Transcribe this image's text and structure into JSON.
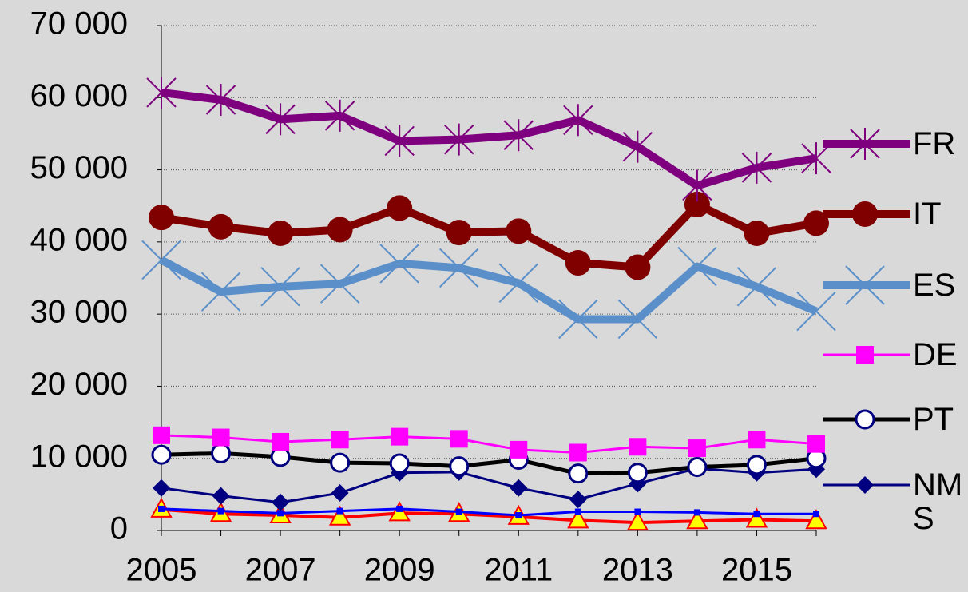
{
  "chart_data": {
    "type": "line",
    "x": [
      2005,
      2006,
      2007,
      2008,
      2009,
      2010,
      2011,
      2012,
      2013,
      2014,
      2015,
      2016
    ],
    "xlim": [
      2005,
      2016
    ],
    "xticks": [
      2005,
      2007,
      2009,
      2011,
      2013,
      2015
    ],
    "ylim": [
      0,
      70000
    ],
    "yticks": [
      {
        "value": 0,
        "label": "0"
      },
      {
        "value": 10000,
        "label": "10 000"
      },
      {
        "value": 20000,
        "label": "20 000"
      },
      {
        "value": 30000,
        "label": "30 000"
      },
      {
        "value": 40000,
        "label": "40 000"
      },
      {
        "value": 50000,
        "label": "50 000"
      },
      {
        "value": 60000,
        "label": "60 000"
      },
      {
        "value": 70000,
        "label": "70 000"
      }
    ],
    "grid": true,
    "legend": "right",
    "series": [
      {
        "name": "FR",
        "color": "#7f007f",
        "marker": "asterisk",
        "values": [
          60700,
          59700,
          57000,
          57500,
          54000,
          54200,
          54800,
          56900,
          53200,
          47800,
          50300,
          51600
        ]
      },
      {
        "name": "IT",
        "color": "#800000",
        "marker": "circle",
        "values": [
          43400,
          42100,
          41200,
          41700,
          44700,
          41300,
          41500,
          37100,
          36500,
          45200,
          41200,
          42600
        ]
      },
      {
        "name": "ES",
        "color": "#5b8fc9",
        "marker": "x",
        "values": [
          37500,
          33100,
          33800,
          34200,
          37000,
          36400,
          34300,
          29300,
          29300,
          36600,
          33800,
          30400
        ]
      },
      {
        "name": "DE",
        "color": "#ff00ff",
        "marker": "square",
        "values": [
          13200,
          12900,
          12300,
          12600,
          13000,
          12700,
          11200,
          10800,
          11600,
          11400,
          12600,
          12000
        ]
      },
      {
        "name": "PT",
        "color": "#000000",
        "marker": "ring",
        "values": [
          10500,
          10700,
          10200,
          9400,
          9300,
          8900,
          9800,
          7900,
          8000,
          8800,
          9100,
          10000
        ]
      },
      {
        "name": "NMS",
        "color": "#000080",
        "marker": "diamond",
        "values": [
          5900,
          4800,
          3900,
          5200,
          8000,
          8100,
          5900,
          4300,
          6500,
          8600,
          8000,
          8500
        ]
      },
      {
        "color": "#0000ff",
        "marker": "small-square",
        "values": [
          3000,
          2700,
          2400,
          2700,
          3000,
          2600,
          2100,
          2600,
          2600,
          2500,
          2300,
          2300
        ]
      },
      {
        "color": "#ff0000",
        "marker": "triangle",
        "values": [
          2900,
          2300,
          2100,
          1800,
          2400,
          2300,
          1900,
          1400,
          1100,
          1300,
          1500,
          1300
        ]
      }
    ]
  }
}
